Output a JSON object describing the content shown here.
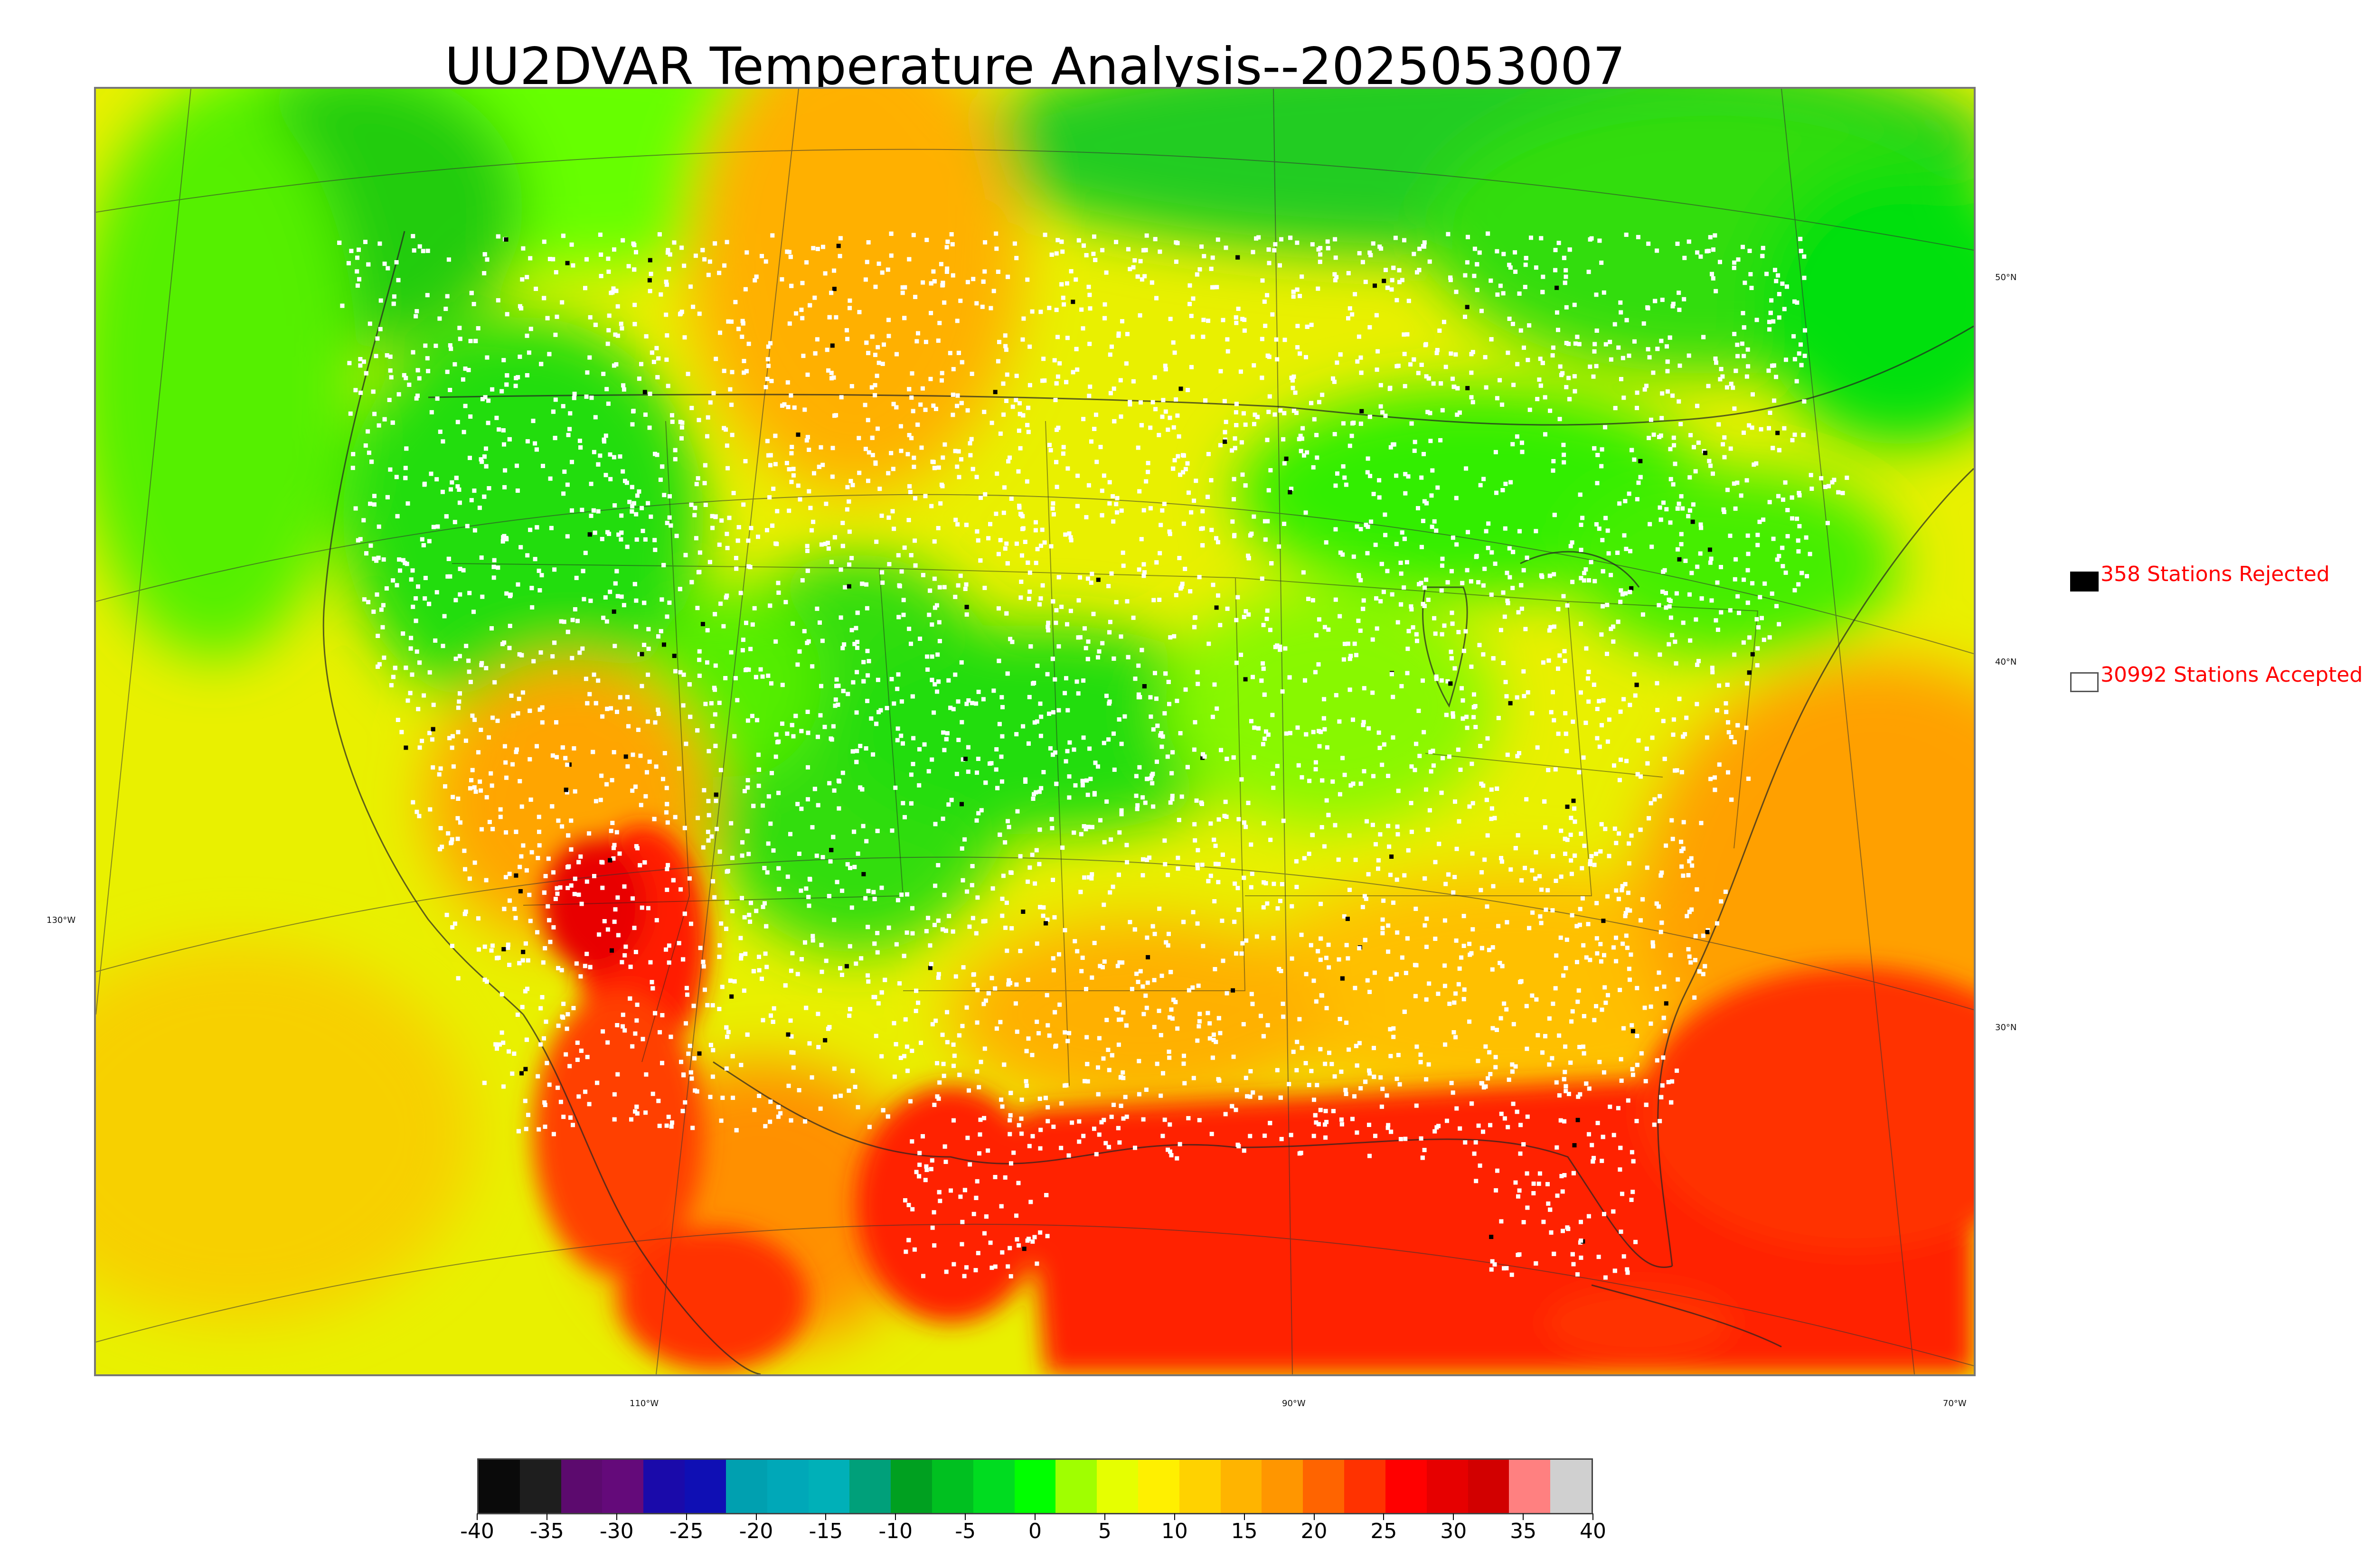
{
  "title": "UU2DVAR Temperature Analysis--2025053007",
  "map": {
    "lat_labels": [
      "50°N",
      "40°N",
      "30°N"
    ],
    "lon_labels": [
      "130°W",
      "110°W",
      "90°W",
      "70°W"
    ]
  },
  "legend": {
    "rejected_label": "358 Stations Rejected",
    "accepted_label": "30992 Stations Accepted",
    "rejected_color": "#000000",
    "accepted_color": "#ffffff",
    "text_color": "#ff0000"
  },
  "colorbar": {
    "ticks": [
      "-40",
      "-35",
      "-30",
      "-25",
      "-20",
      "-15",
      "-10",
      "-5",
      "0",
      "5",
      "10",
      "15",
      "20",
      "25",
      "30",
      "35",
      "40"
    ],
    "min": -40,
    "max": 40,
    "colors": [
      "#0a0a0a",
      "#1e1e1e",
      "#5c0a6e",
      "#640a7a",
      "#1a0aaa",
      "#0f0fb4",
      "#00a0b0",
      "#00a8b8",
      "#00b0b8",
      "#00a07a",
      "#00a020",
      "#00c020",
      "#00dc20",
      "#00ff00",
      "#a0ff00",
      "#e6ff00",
      "#fff000",
      "#ffd200",
      "#ffb400",
      "#ff9600",
      "#ff6400",
      "#ff3200",
      "#ff0000",
      "#e60000",
      "#d20000",
      "#ff8080",
      "#d0d0d0"
    ]
  }
}
